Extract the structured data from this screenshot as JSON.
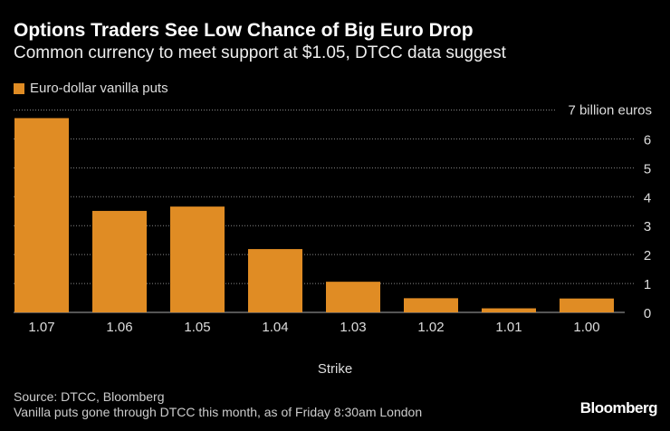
{
  "header": {
    "title": "Options Traders See Low Chance of Big Euro Drop",
    "subtitle": "Common currency to meet support at $1.05, DTCC data suggest"
  },
  "footer": {
    "source": "Source: DTCC, Bloomberg",
    "note": "Vanilla puts gone through DTCC this month, as of Friday 8:30am London",
    "logo": "Bloomberg"
  },
  "chart_data": {
    "type": "bar",
    "categories": [
      "1.07",
      "1.06",
      "1.05",
      "1.04",
      "1.03",
      "1.02",
      "1.01",
      "1.00"
    ],
    "series": [
      {
        "name": "Euro-dollar vanilla puts",
        "values": [
          6.72,
          3.51,
          3.66,
          2.19,
          1.06,
          0.49,
          0.14,
          0.48
        ],
        "color": "#e08c24"
      }
    ],
    "xlabel": "Strike",
    "ylabel": "",
    "yunit_label": "7 billion euros",
    "yticks": [
      "0",
      "1",
      "2",
      "3",
      "4",
      "5",
      "6"
    ],
    "ylim": [
      0,
      7
    ],
    "grid": true,
    "legend": "top-left"
  }
}
